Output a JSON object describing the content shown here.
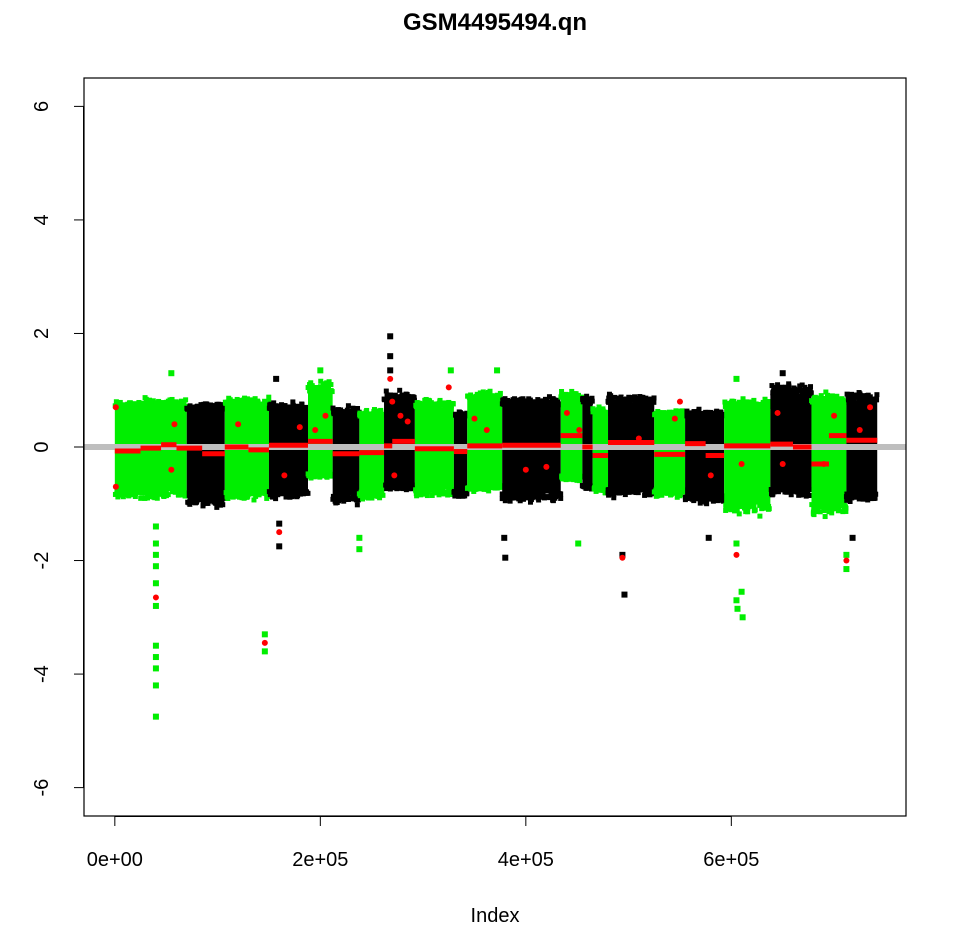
{
  "chart_data": {
    "type": "scatter",
    "title": "GSM4495494.qn",
    "xlabel": "Index",
    "ylabel": "",
    "xlim": [
      -30000,
      770000
    ],
    "ylim": [
      -6.5,
      6.5
    ],
    "x_ticks": [
      0,
      200000,
      400000,
      600000
    ],
    "x_tick_labels": [
      "0e+00",
      "2e+05",
      "4e+05",
      "6e+05"
    ],
    "y_ticks": [
      -6,
      -4,
      -2,
      0,
      2,
      4,
      6
    ],
    "y_tick_labels": [
      "-6",
      "-4",
      "-2",
      "0",
      "2",
      "4",
      "6"
    ],
    "grid": false,
    "legend": "none",
    "reference_line": {
      "y": 0,
      "color": "#bebebe"
    },
    "colors": {
      "chrom_a": "#00ee00",
      "chrom_b": "#000000",
      "segments": "#ff0000"
    },
    "chromosome_blocks": [
      {
        "x_start": 0,
        "x_end": 70000,
        "color": "chrom_a",
        "y_low": -1.0,
        "y_high": 0.9
      },
      {
        "x_start": 70000,
        "x_end": 107000,
        "color": "chrom_b",
        "y_low": -1.15,
        "y_high": 0.85
      },
      {
        "x_start": 107000,
        "x_end": 150000,
        "color": "chrom_a",
        "y_low": -1.0,
        "y_high": 0.95
      },
      {
        "x_start": 150000,
        "x_end": 188000,
        "color": "chrom_b",
        "y_low": -1.0,
        "y_high": 0.85
      },
      {
        "x_start": 188000,
        "x_end": 212000,
        "color": "chrom_a",
        "y_low": -0.6,
        "y_high": 1.25
      },
      {
        "x_start": 212000,
        "x_end": 238000,
        "color": "chrom_b",
        "y_low": -1.1,
        "y_high": 0.75
      },
      {
        "x_start": 238000,
        "x_end": 262000,
        "color": "chrom_a",
        "y_low": -1.0,
        "y_high": 0.7
      },
      {
        "x_start": 262000,
        "x_end": 292000,
        "color": "chrom_b",
        "y_low": -0.85,
        "y_high": 1.05
      },
      {
        "x_start": 292000,
        "x_end": 330000,
        "color": "chrom_a",
        "y_low": -0.95,
        "y_high": 0.9
      },
      {
        "x_start": 330000,
        "x_end": 343000,
        "color": "chrom_b",
        "y_low": -1.0,
        "y_high": 0.7
      },
      {
        "x_start": 343000,
        "x_end": 377000,
        "color": "chrom_a",
        "y_low": -0.85,
        "y_high": 1.1
      },
      {
        "x_start": 377000,
        "x_end": 434000,
        "color": "chrom_b",
        "y_low": -1.05,
        "y_high": 0.95
      },
      {
        "x_start": 434000,
        "x_end": 455000,
        "color": "chrom_a",
        "y_low": -0.65,
        "y_high": 1.1
      },
      {
        "x_start": 455000,
        "x_end": 465000,
        "color": "chrom_b",
        "y_low": -0.85,
        "y_high": 1.0
      },
      {
        "x_start": 465000,
        "x_end": 480000,
        "color": "chrom_a",
        "y_low": -0.9,
        "y_high": 0.75
      },
      {
        "x_start": 480000,
        "x_end": 525000,
        "color": "chrom_b",
        "y_low": -0.95,
        "y_high": 1.0
      },
      {
        "x_start": 525000,
        "x_end": 555000,
        "color": "chrom_a",
        "y_low": -0.95,
        "y_high": 0.7
      },
      {
        "x_start": 555000,
        "x_end": 593000,
        "color": "chrom_b",
        "y_low": -1.1,
        "y_high": 0.7
      },
      {
        "x_start": 593000,
        "x_end": 638000,
        "color": "chrom_a",
        "y_low": -1.3,
        "y_high": 0.9
      },
      {
        "x_start": 638000,
        "x_end": 678000,
        "color": "chrom_b",
        "y_low": -0.95,
        "y_high": 1.2
      },
      {
        "x_start": 678000,
        "x_end": 712000,
        "color": "chrom_a",
        "y_low": -1.3,
        "y_high": 1.0
      },
      {
        "x_start": 712000,
        "x_end": 742000,
        "color": "chrom_b",
        "y_low": -1.05,
        "y_high": 1.05
      }
    ],
    "outliers": [
      {
        "x": 40000,
        "y": -1.4,
        "color": "chrom_a"
      },
      {
        "x": 40000,
        "y": -1.7,
        "color": "chrom_a"
      },
      {
        "x": 40000,
        "y": -1.9,
        "color": "chrom_a"
      },
      {
        "x": 40000,
        "y": -2.1,
        "color": "chrom_a"
      },
      {
        "x": 40000,
        "y": -2.4,
        "color": "chrom_a"
      },
      {
        "x": 40000,
        "y": -2.8,
        "color": "chrom_a"
      },
      {
        "x": 40000,
        "y": -3.5,
        "color": "chrom_a"
      },
      {
        "x": 40000,
        "y": -3.7,
        "color": "chrom_a"
      },
      {
        "x": 40000,
        "y": -3.9,
        "color": "chrom_a"
      },
      {
        "x": 40000,
        "y": -4.2,
        "color": "chrom_a"
      },
      {
        "x": 40000,
        "y": -4.75,
        "color": "chrom_a"
      },
      {
        "x": 146000,
        "y": -3.3,
        "color": "chrom_a"
      },
      {
        "x": 146000,
        "y": -3.6,
        "color": "chrom_a"
      },
      {
        "x": 160000,
        "y": -1.75,
        "color": "chrom_b"
      },
      {
        "x": 160000,
        "y": -1.35,
        "color": "chrom_b"
      },
      {
        "x": 238000,
        "y": -1.6,
        "color": "chrom_a"
      },
      {
        "x": 238000,
        "y": -1.8,
        "color": "chrom_a"
      },
      {
        "x": 379000,
        "y": -1.6,
        "color": "chrom_b"
      },
      {
        "x": 380000,
        "y": -1.95,
        "color": "chrom_b"
      },
      {
        "x": 494000,
        "y": -1.9,
        "color": "chrom_b"
      },
      {
        "x": 496000,
        "y": -2.6,
        "color": "chrom_b"
      },
      {
        "x": 451000,
        "y": -1.7,
        "color": "chrom_a"
      },
      {
        "x": 578000,
        "y": -1.6,
        "color": "chrom_b"
      },
      {
        "x": 605000,
        "y": -1.7,
        "color": "chrom_a"
      },
      {
        "x": 605000,
        "y": -2.7,
        "color": "chrom_a"
      },
      {
        "x": 606000,
        "y": -2.85,
        "color": "chrom_a"
      },
      {
        "x": 610000,
        "y": -2.55,
        "color": "chrom_a"
      },
      {
        "x": 611000,
        "y": -3.0,
        "color": "chrom_a"
      },
      {
        "x": 712000,
        "y": -1.9,
        "color": "chrom_a"
      },
      {
        "x": 712000,
        "y": -2.15,
        "color": "chrom_a"
      },
      {
        "x": 718000,
        "y": -1.6,
        "color": "chrom_b"
      },
      {
        "x": 268000,
        "y": 1.95,
        "color": "chrom_b"
      },
      {
        "x": 268000,
        "y": 1.6,
        "color": "chrom_b"
      },
      {
        "x": 268000,
        "y": 1.35,
        "color": "chrom_b"
      },
      {
        "x": 327000,
        "y": 1.35,
        "color": "chrom_a"
      },
      {
        "x": 55000,
        "y": 1.3,
        "color": "chrom_a"
      },
      {
        "x": 200000,
        "y": 1.35,
        "color": "chrom_a"
      },
      {
        "x": 372000,
        "y": 1.35,
        "color": "chrom_a"
      },
      {
        "x": 157000,
        "y": 1.2,
        "color": "chrom_b"
      },
      {
        "x": 650000,
        "y": 1.3,
        "color": "chrom_b"
      },
      {
        "x": 605000,
        "y": 1.2,
        "color": "chrom_a"
      }
    ],
    "segments": [
      {
        "x_start": 0,
        "x_end": 25000,
        "y": -0.07
      },
      {
        "x_start": 25000,
        "x_end": 45000,
        "y": -0.02
      },
      {
        "x_start": 45000,
        "x_end": 60000,
        "y": 0.04
      },
      {
        "x_start": 60000,
        "x_end": 85000,
        "y": -0.02
      },
      {
        "x_start": 85000,
        "x_end": 107000,
        "y": -0.12
      },
      {
        "x_start": 107000,
        "x_end": 130000,
        "y": 0.0
      },
      {
        "x_start": 130000,
        "x_end": 150000,
        "y": -0.05
      },
      {
        "x_start": 150000,
        "x_end": 188000,
        "y": 0.03
      },
      {
        "x_start": 188000,
        "x_end": 212000,
        "y": 0.1
      },
      {
        "x_start": 212000,
        "x_end": 238000,
        "y": -0.12
      },
      {
        "x_start": 238000,
        "x_end": 262000,
        "y": -0.1
      },
      {
        "x_start": 262000,
        "x_end": 270000,
        "y": 0.02
      },
      {
        "x_start": 270000,
        "x_end": 292000,
        "y": 0.1
      },
      {
        "x_start": 292000,
        "x_end": 330000,
        "y": -0.03
      },
      {
        "x_start": 330000,
        "x_end": 343000,
        "y": -0.08
      },
      {
        "x_start": 343000,
        "x_end": 377000,
        "y": 0.02
      },
      {
        "x_start": 377000,
        "x_end": 434000,
        "y": 0.03
      },
      {
        "x_start": 434000,
        "x_end": 455000,
        "y": 0.2
      },
      {
        "x_start": 455000,
        "x_end": 465000,
        "y": 0.0
      },
      {
        "x_start": 465000,
        "x_end": 480000,
        "y": -0.15
      },
      {
        "x_start": 480000,
        "x_end": 525000,
        "y": 0.08
      },
      {
        "x_start": 525000,
        "x_end": 555000,
        "y": -0.13
      },
      {
        "x_start": 555000,
        "x_end": 575000,
        "y": 0.06
      },
      {
        "x_start": 575000,
        "x_end": 593000,
        "y": -0.15
      },
      {
        "x_start": 593000,
        "x_end": 638000,
        "y": 0.02
      },
      {
        "x_start": 638000,
        "x_end": 660000,
        "y": 0.05
      },
      {
        "x_start": 660000,
        "x_end": 678000,
        "y": 0.0
      },
      {
        "x_start": 678000,
        "x_end": 695000,
        "y": -0.3
      },
      {
        "x_start": 695000,
        "x_end": 712000,
        "y": 0.2
      },
      {
        "x_start": 712000,
        "x_end": 742000,
        "y": 0.12
      }
    ],
    "segment_markers": [
      {
        "x": 1000,
        "y": 0.7
      },
      {
        "x": 1000,
        "y": -0.7
      },
      {
        "x": 40000,
        "y": -2.65
      },
      {
        "x": 55000,
        "y": -0.4
      },
      {
        "x": 58000,
        "y": 0.4
      },
      {
        "x": 120000,
        "y": 0.4
      },
      {
        "x": 146000,
        "y": -3.45
      },
      {
        "x": 160000,
        "y": -1.5
      },
      {
        "x": 165000,
        "y": -0.5
      },
      {
        "x": 180000,
        "y": 0.35
      },
      {
        "x": 195000,
        "y": 0.3
      },
      {
        "x": 205000,
        "y": 0.55
      },
      {
        "x": 268000,
        "y": 1.2
      },
      {
        "x": 270000,
        "y": 0.8
      },
      {
        "x": 272000,
        "y": -0.5
      },
      {
        "x": 278000,
        "y": 0.55
      },
      {
        "x": 285000,
        "y": 0.45
      },
      {
        "x": 325000,
        "y": 1.05
      },
      {
        "x": 350000,
        "y": 0.5
      },
      {
        "x": 362000,
        "y": 0.3
      },
      {
        "x": 400000,
        "y": -0.4
      },
      {
        "x": 420000,
        "y": -0.35
      },
      {
        "x": 440000,
        "y": 0.6
      },
      {
        "x": 452000,
        "y": 0.3
      },
      {
        "x": 494000,
        "y": -1.95
      },
      {
        "x": 510000,
        "y": 0.15
      },
      {
        "x": 545000,
        "y": 0.5
      },
      {
        "x": 550000,
        "y": 0.8
      },
      {
        "x": 580000,
        "y": -0.5
      },
      {
        "x": 605000,
        "y": -1.9
      },
      {
        "x": 610000,
        "y": -0.3
      },
      {
        "x": 645000,
        "y": 0.6
      },
      {
        "x": 650000,
        "y": -0.3
      },
      {
        "x": 690000,
        "y": -0.3
      },
      {
        "x": 700000,
        "y": 0.55
      },
      {
        "x": 712000,
        "y": -2.0
      },
      {
        "x": 725000,
        "y": 0.3
      },
      {
        "x": 735000,
        "y": 0.7
      }
    ]
  }
}
